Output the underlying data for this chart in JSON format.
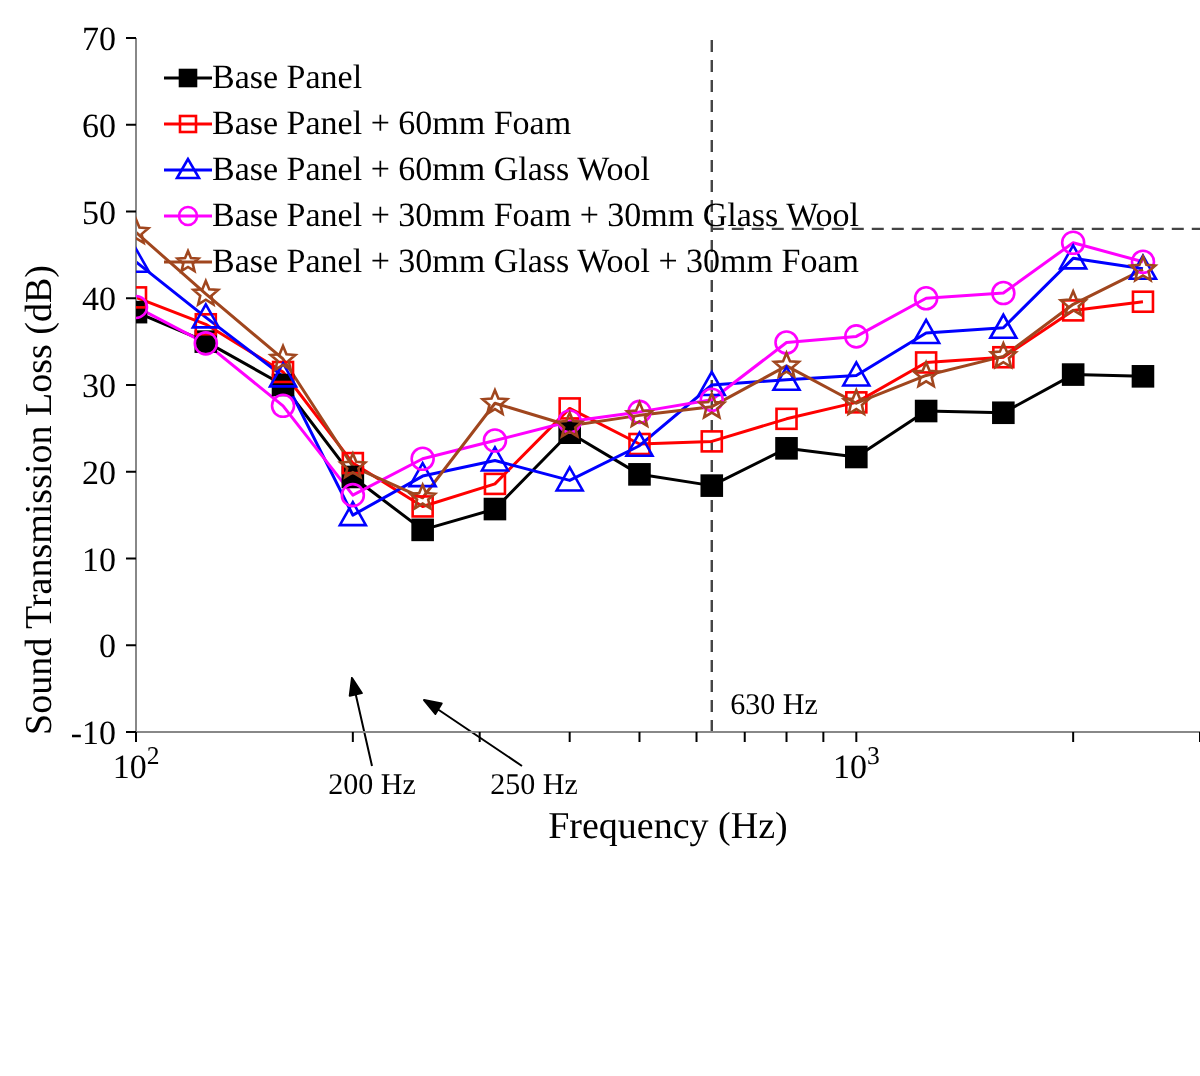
{
  "chart_data": {
    "type": "line",
    "xlabel": "Frequency (Hz)",
    "ylabel": "Sound Transmission Loss (dB)",
    "x": [
      100,
      125,
      160,
      200,
      250,
      315,
      400,
      500,
      630,
      800,
      1000,
      1250,
      1600,
      2000,
      2500
    ],
    "log": "x",
    "xlim": [
      100,
      3000
    ],
    "ylim": [
      -10,
      70
    ],
    "xticks": [
      {
        "value": 100,
        "label": "10$^{2}$"
      },
      {
        "value": 200,
        "label": null
      },
      {
        "value": 300,
        "label": null
      },
      {
        "value": 400,
        "label": null
      },
      {
        "value": 500,
        "label": null
      },
      {
        "value": 600,
        "label": null
      },
      {
        "value": 700,
        "label": null
      },
      {
        "value": 800,
        "label": null
      },
      {
        "value": 900,
        "label": null
      },
      {
        "value": 1000,
        "label": "10$^{3}$"
      },
      {
        "value": 2000,
        "label": null
      },
      {
        "value": 3000,
        "label": null
      }
    ],
    "yticks": [
      -10,
      0,
      10,
      20,
      30,
      40,
      50,
      60,
      70
    ],
    "grid": false,
    "legend": "top left",
    "line_style": "solid",
    "series": [
      {
        "name": "Base Panel",
        "color": "#000000",
        "marker": "square",
        "values": [
          38.4,
          35,
          30,
          19.4,
          13.3,
          15.7,
          24.5,
          19.7,
          18.4,
          22.7,
          21.7,
          27,
          26.8,
          31.2,
          31
        ]
      },
      {
        "name": "Base Panel + 60mm Foam",
        "color": "#ff0000",
        "marker": "square",
        "values": [
          40.1,
          37,
          31.5,
          21,
          16,
          18.6,
          27.3,
          23.2,
          23.5,
          26.1,
          28,
          32.6,
          33.2,
          38.6,
          39.6
        ]
      },
      {
        "name": "Base Panel + 60mm Glass Wool",
        "color": "#0000ff",
        "marker": "triangle",
        "values": [
          44.2,
          37.8,
          31,
          15,
          19.5,
          21.3,
          19,
          23,
          30,
          30.6,
          31.1,
          36,
          36.6,
          44.6,
          43.4
        ]
      },
      {
        "name": "Base Panel + 30mm Foam + 30mm Glass Wool",
        "color": "#ff00ff",
        "marker": "circle",
        "values": [
          39,
          34.8,
          27.6,
          17.3,
          21.5,
          23.6,
          25.8,
          26.9,
          28.3,
          34.9,
          35.6,
          40,
          40.6,
          46.4,
          44.2
        ]
      },
      {
        "name": "Base Panel + 30mm Glass Wool + 30mm Foam",
        "color": "#a0461e",
        "marker": "star",
        "values": [
          47.6,
          40.5,
          33,
          20.6,
          17,
          27.9,
          25.3,
          26.5,
          27.5,
          32.2,
          27.9,
          31.1,
          33.3,
          39.3,
          43.3
        ]
      }
    ],
    "ref_lines": [
      {
        "axis": "x",
        "value": 630,
        "label": "630 Hz",
        "line_style": "dashed",
        "color": "#444444"
      },
      {
        "axis": "y",
        "value": 48,
        "label": null,
        "line_style": "dashed",
        "color": "#444444"
      }
    ],
    "annotations": [
      "200 Hz",
      "250 Hz"
    ]
  }
}
